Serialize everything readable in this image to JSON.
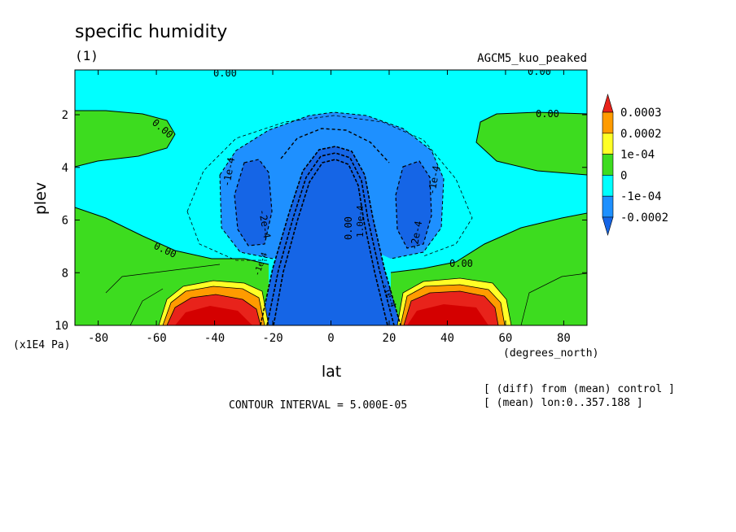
{
  "chart_data": {
    "type": "heatmap",
    "title": "specific humidity",
    "subtitle": "(1)",
    "model_label": "AGCM5_kuo_peaked",
    "xlabel": "lat",
    "ylabel": "plev",
    "x_units": "(degrees_north)",
    "y_units": "(x1E4 Pa)",
    "x_ticks": [
      -80,
      -60,
      -40,
      -20,
      0,
      20,
      40,
      60,
      80
    ],
    "x_tick_labels": [
      "-80",
      "-60",
      "-40",
      "-20",
      "0",
      "20",
      "40",
      "60",
      "80"
    ],
    "y_ticks": [
      2,
      4,
      6,
      8,
      10
    ],
    "y_tick_labels": [
      "2",
      "4",
      "6",
      "8",
      "10"
    ],
    "xlim": [
      -88,
      88
    ],
    "ylim": [
      10,
      0.3
    ],
    "contour_interval_text": "CONTOUR INTERVAL = 5.000E-05",
    "info_lines": [
      "[ (diff) from (mean) control ]",
      "[ (mean) lon:0..357.188 ]"
    ],
    "colorbar": {
      "levels": [
        "0.0003",
        "0.0002",
        "1e-04",
        "0",
        "-1e-04",
        "-0.0002"
      ],
      "colors": [
        "#e8231b",
        "#ff9b00",
        "#ffff26",
        "#3ddc1f",
        "#00ffff",
        "#1e90ff",
        "#1565e6"
      ]
    },
    "contour_labels": [
      "0.00",
      "0.00",
      "0.00",
      "0.00",
      "0.00",
      "0.00",
      "0.00",
      "-1e-4",
      "-2e-4",
      "-2e-4",
      "-1e-4",
      "-1e-4",
      "-1e-4",
      "1.0e-4"
    ],
    "zones": [
      {
        "region": "top of atmosphere, all latitudes",
        "value": "-1e-04 to 0"
      },
      {
        "region": "surface, 20-60 both hemispheres",
        "value": "above 0.0003"
      },
      {
        "region": "tropics -20 to 20 column",
        "value": "below -0.0002"
      },
      {
        "region": "mid-troposphere 30 latitude both hemispheres",
        "value": "-0.0002 to -1e-04"
      },
      {
        "region": "high latitudes low levels",
        "value": "0 to 1e-04"
      }
    ]
  }
}
